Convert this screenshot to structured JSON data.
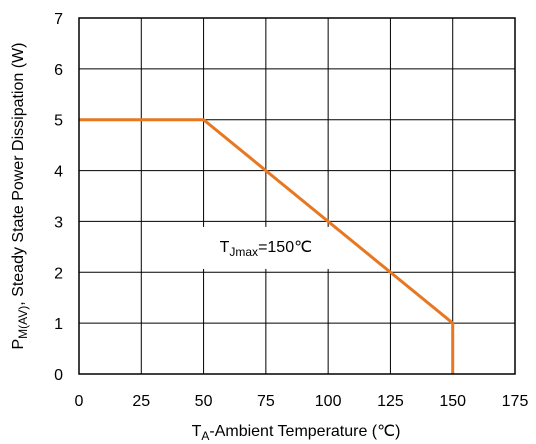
{
  "chart_data": {
    "type": "line",
    "xlabel": {
      "base": "T",
      "sub": "A",
      "rest": "-Ambient Temperature (℃)"
    },
    "ylabel": {
      "base": "P",
      "sub": "M(AV)",
      "rest": ", Steady State Power Dissipation (W)"
    },
    "xlim": [
      0,
      175
    ],
    "ylim": [
      0,
      7
    ],
    "xticks": [
      0,
      25,
      50,
      75,
      100,
      125,
      150,
      175
    ],
    "yticks": [
      0,
      1,
      2,
      3,
      4,
      5,
      6,
      7
    ],
    "grid": true,
    "series": [
      {
        "color": "#E87722",
        "x": [
          0,
          50,
          150,
          150
        ],
        "y": [
          5,
          5,
          1,
          0
        ]
      }
    ],
    "annotation": {
      "base": "T",
      "sub": "Jmax",
      "rest": "=150℃",
      "x": 75,
      "y": 2.4
    }
  }
}
